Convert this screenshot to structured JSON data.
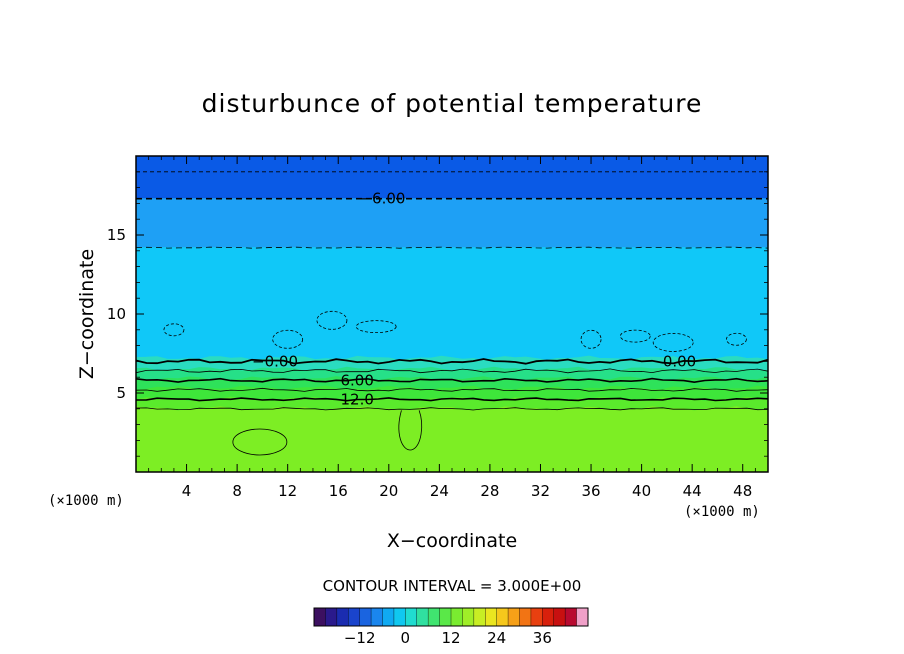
{
  "chart_data": {
    "type": "heatmap",
    "title": "disturbunce of potential temperature",
    "xlabel": "X−coordinate",
    "ylabel": "Z−coordinate",
    "x_unit_left": "(×1000 m)",
    "x_unit_right": "(×1000 m)",
    "xlim": [
      0,
      50
    ],
    "ylim": [
      0,
      20
    ],
    "x_ticks": [
      4,
      8,
      12,
      16,
      20,
      24,
      28,
      32,
      36,
      40,
      44,
      48
    ],
    "y_ticks": [
      5,
      10,
      15
    ],
    "contour_interval_text": "CONTOUR INTERVAL = 3.000E+00",
    "contour_labels": [
      {
        "text": "−6.00",
        "x": 19.5,
        "z": 17.3
      },
      {
        "text": "−0.00",
        "x": 11.0,
        "z": 7.0
      },
      {
        "text": "0.00",
        "x": 43.0,
        "z": 7.0
      },
      {
        "text": "6.00",
        "x": 17.5,
        "z": 5.8
      },
      {
        "text": "12.0",
        "x": 17.5,
        "z": 4.6
      }
    ],
    "layers": [
      {
        "z_top": 20.0,
        "z_bottom": 17.3,
        "value": -9,
        "color": "#0a5ae6"
      },
      {
        "z_top": 17.3,
        "z_bottom": 14.2,
        "value": -6,
        "color": "#1ea0f5"
      },
      {
        "z_top": 14.2,
        "z_bottom": 7.2,
        "value": -3,
        "color": "#10c8f8"
      },
      {
        "z_top": 7.2,
        "z_bottom": 6.5,
        "value": 0,
        "color": "#2adcc0"
      },
      {
        "z_top": 6.5,
        "z_bottom": 5.9,
        "value": 3,
        "color": "#26e088"
      },
      {
        "z_top": 5.9,
        "z_bottom": 5.3,
        "value": 6,
        "color": "#2ee25a"
      },
      {
        "z_top": 5.3,
        "z_bottom": 4.6,
        "value": 9,
        "color": "#3ee63a"
      },
      {
        "z_top": 4.6,
        "z_bottom": 4.0,
        "value": 12,
        "color": "#5aea2c"
      },
      {
        "z_top": 4.0,
        "z_bottom": 0.0,
        "value": 15,
        "color": "#7dee24"
      }
    ],
    "colorbar": {
      "ticks": [
        -12,
        0,
        12,
        24,
        36
      ],
      "range": [
        -24,
        48
      ],
      "colors": [
        "#3c1060",
        "#2a1a8c",
        "#1a2cb0",
        "#1a44cc",
        "#1a64e0",
        "#1a86ee",
        "#10aaf2",
        "#10c8f0",
        "#20dcd0",
        "#30e0a0",
        "#40e470",
        "#5ae848",
        "#7aec30",
        "#a0ee28",
        "#c8ee24",
        "#eae620",
        "#f6c81c",
        "#f6a018",
        "#f27414",
        "#e84010",
        "#d8200c",
        "#c81010",
        "#b80a30",
        "#f0a0c8"
      ]
    }
  }
}
